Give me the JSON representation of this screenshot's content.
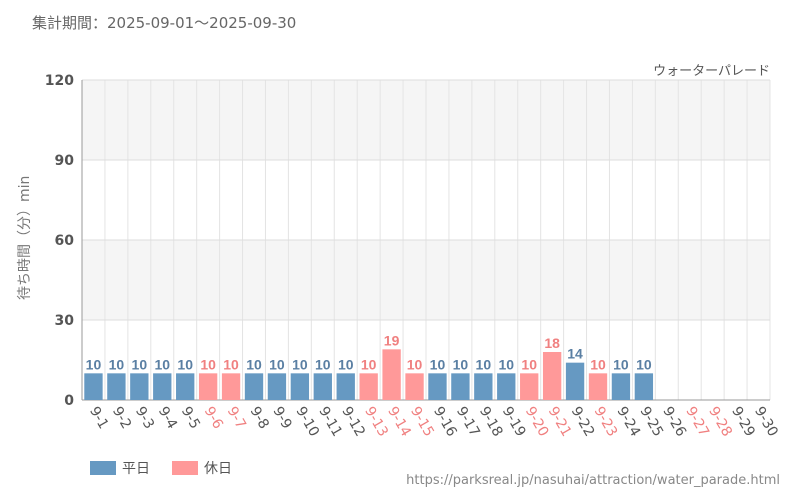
{
  "header": {
    "period": "集計期間：2025-09-01～2025-09-30"
  },
  "footer": {
    "source": "https://parksreal.jp/nasuhai/attraction/water_parade.html"
  },
  "colors": {
    "weekday": "#6699c2",
    "holiday": "#ff9999",
    "weekday_text": "#5a7fa3",
    "holiday_text": "#f08080"
  },
  "chart_data": {
    "type": "bar",
    "title": "ウォーターパレード",
    "ylabel": "待ち時間（分）min",
    "ylim": [
      0,
      120
    ],
    "yticks": [
      0,
      30,
      60,
      90,
      120
    ],
    "grid": true,
    "legend": {
      "placement": "bottom-left",
      "entries": [
        {
          "label": "平日",
          "kind": "weekday"
        },
        {
          "label": "休日",
          "kind": "holiday"
        }
      ]
    },
    "categories": [
      "9-1",
      "9-2",
      "9-3",
      "9-4",
      "9-5",
      "9-6",
      "9-7",
      "9-8",
      "9-9",
      "9-10",
      "9-11",
      "9-12",
      "9-13",
      "9-14",
      "9-15",
      "9-16",
      "9-17",
      "9-18",
      "9-19",
      "9-20",
      "9-21",
      "9-22",
      "9-23",
      "9-24",
      "9-25",
      "9-26",
      "9-27",
      "9-28",
      "9-29",
      "9-30"
    ],
    "values": [
      10,
      10,
      10,
      10,
      10,
      10,
      10,
      10,
      10,
      10,
      10,
      10,
      10,
      19,
      10,
      10,
      10,
      10,
      10,
      10,
      18,
      14,
      10,
      10,
      10,
      null,
      null,
      null,
      null,
      null
    ],
    "day_type": [
      "weekday",
      "weekday",
      "weekday",
      "weekday",
      "weekday",
      "holiday",
      "holiday",
      "weekday",
      "weekday",
      "weekday",
      "weekday",
      "weekday",
      "holiday",
      "holiday",
      "holiday",
      "weekday",
      "weekday",
      "weekday",
      "weekday",
      "holiday",
      "holiday",
      "weekday",
      "holiday",
      "weekday",
      "weekday",
      "weekday",
      "holiday",
      "holiday",
      "weekday",
      "weekday"
    ]
  }
}
